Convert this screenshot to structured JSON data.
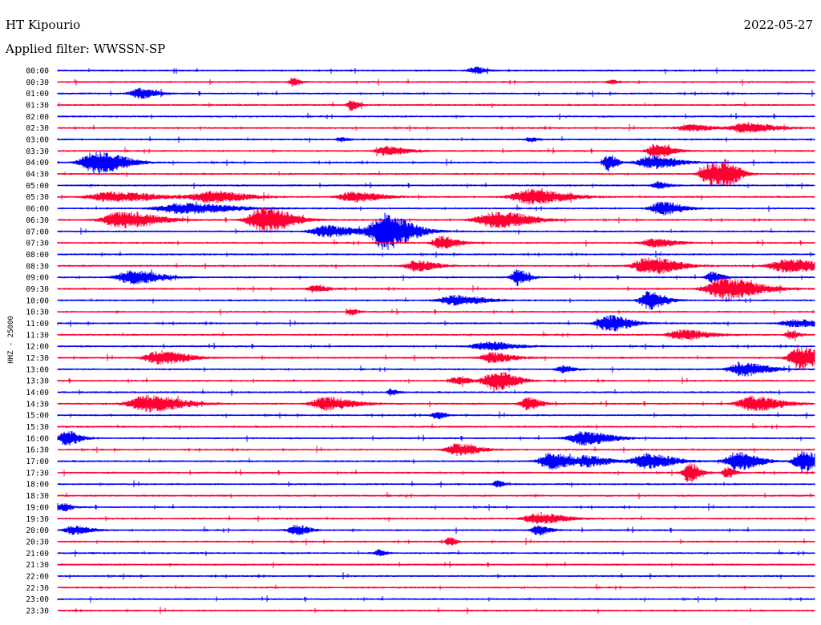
{
  "header": {
    "station": "HT Kipourio",
    "date": "2022-05-27",
    "filter": "Applied filter: WWSSN-SP"
  },
  "colors": {
    "trace_a": "#0000ff",
    "trace_b": "#ff0033",
    "background": "#ffffff"
  },
  "chart_data": {
    "type": "line",
    "title": "HT Kipourio",
    "subtitle": "Applied filter: WWSSN-SP",
    "ylabel": "HHZ - 25000",
    "xlabel": "",
    "legend": "none",
    "grid": false,
    "row_labels": [
      "00:00",
      "00:30",
      "01:00",
      "01:30",
      "02:00",
      "02:30",
      "03:00",
      "03:30",
      "04:00",
      "04:30",
      "05:00",
      "05:30",
      "06:00",
      "06:30",
      "07:00",
      "07:30",
      "08:00",
      "08:30",
      "09:00",
      "09:30",
      "10:00",
      "10:30",
      "11:00",
      "11:30",
      "12:00",
      "12:30",
      "13:00",
      "13:30",
      "14:00",
      "14:30",
      "15:00",
      "15:30",
      "16:00",
      "16:30",
      "17:00",
      "17:30",
      "18:00",
      "18:30",
      "19:00",
      "19:30",
      "20:00",
      "20:30",
      "21:00",
      "21:30",
      "22:00",
      "22:30",
      "23:00",
      "23:30"
    ],
    "row_colors": [
      "blue",
      "red"
    ],
    "minutes_per_row": 30,
    "events": [
      {
        "row": "00:00",
        "minute": 16.5,
        "amplitude": 4,
        "duration": 0.8
      },
      {
        "row": "00:30",
        "minute": 9.3,
        "amplitude": 5,
        "duration": 0.5
      },
      {
        "row": "00:30",
        "minute": 21.9,
        "amplitude": 3,
        "duration": 0.5
      },
      {
        "row": "01:00",
        "minute": 3.2,
        "amplitude": 6,
        "duration": 1.2
      },
      {
        "row": "01:30",
        "minute": 11.6,
        "amplitude": 7,
        "duration": 0.5
      },
      {
        "row": "02:30",
        "minute": 27.2,
        "amplitude": 6,
        "duration": 2.0
      },
      {
        "row": "02:30",
        "minute": 25.0,
        "amplitude": 4,
        "duration": 1.5
      },
      {
        "row": "03:00",
        "minute": 11.2,
        "amplitude": 3,
        "duration": 0.5
      },
      {
        "row": "03:00",
        "minute": 18.7,
        "amplitude": 3,
        "duration": 0.5
      },
      {
        "row": "03:30",
        "minute": 13.0,
        "amplitude": 5,
        "duration": 1.5
      },
      {
        "row": "03:30",
        "minute": 23.7,
        "amplitude": 8,
        "duration": 1.2
      },
      {
        "row": "04:00",
        "minute": 1.5,
        "amplitude": 14,
        "duration": 2.0
      },
      {
        "row": "04:00",
        "minute": 23.5,
        "amplitude": 8,
        "duration": 1.8
      },
      {
        "row": "04:00",
        "minute": 21.8,
        "amplitude": 10,
        "duration": 0.6
      },
      {
        "row": "04:30",
        "minute": 25.8,
        "amplitude": 13,
        "duration": 1.2
      },
      {
        "row": "04:30",
        "minute": 26.5,
        "amplitude": 12,
        "duration": 1.0
      },
      {
        "row": "05:00",
        "minute": 23.8,
        "amplitude": 4,
        "duration": 0.8
      },
      {
        "row": "05:30",
        "minute": 2.1,
        "amplitude": 6,
        "duration": 3.0
      },
      {
        "row": "05:30",
        "minute": 6.0,
        "amplitude": 7,
        "duration": 2.5
      },
      {
        "row": "05:30",
        "minute": 18.7,
        "amplitude": 9,
        "duration": 2.5
      },
      {
        "row": "05:30",
        "minute": 11.7,
        "amplitude": 6,
        "duration": 2.0
      },
      {
        "row": "06:00",
        "minute": 4.9,
        "amplitude": 6,
        "duration": 3.5
      },
      {
        "row": "06:00",
        "minute": 23.9,
        "amplitude": 8,
        "duration": 1.5
      },
      {
        "row": "06:30",
        "minute": 2.5,
        "amplitude": 10,
        "duration": 2.5
      },
      {
        "row": "06:30",
        "minute": 8.1,
        "amplitude": 16,
        "duration": 2.0
      },
      {
        "row": "06:30",
        "minute": 17.3,
        "amplitude": 10,
        "duration": 2.5
      },
      {
        "row": "07:00",
        "minute": 12.9,
        "amplitude": 22,
        "duration": 2.0
      },
      {
        "row": "07:00",
        "minute": 10.6,
        "amplitude": 7,
        "duration": 2.0
      },
      {
        "row": "07:30",
        "minute": 15.2,
        "amplitude": 8,
        "duration": 1.2
      },
      {
        "row": "07:30",
        "minute": 23.6,
        "amplitude": 5,
        "duration": 1.5
      },
      {
        "row": "08:30",
        "minute": 14.2,
        "amplitude": 6,
        "duration": 1.5
      },
      {
        "row": "08:30",
        "minute": 23.4,
        "amplitude": 11,
        "duration": 2.0
      },
      {
        "row": "08:30",
        "minute": 28.9,
        "amplitude": 8,
        "duration": 2.5
      },
      {
        "row": "09:00",
        "minute": 2.9,
        "amplitude": 8,
        "duration": 2.0
      },
      {
        "row": "09:00",
        "minute": 18.2,
        "amplitude": 10,
        "duration": 0.8
      },
      {
        "row": "09:00",
        "minute": 25.9,
        "amplitude": 6,
        "duration": 0.8
      },
      {
        "row": "09:30",
        "minute": 26.4,
        "amplitude": 13,
        "duration": 2.5
      },
      {
        "row": "09:30",
        "minute": 10.2,
        "amplitude": 4,
        "duration": 1.0
      },
      {
        "row": "10:00",
        "minute": 15.7,
        "amplitude": 6,
        "duration": 2.0
      },
      {
        "row": "10:00",
        "minute": 23.4,
        "amplitude": 11,
        "duration": 1.2
      },
      {
        "row": "10:30",
        "minute": 11.6,
        "amplitude": 4,
        "duration": 0.5
      },
      {
        "row": "11:00",
        "minute": 21.8,
        "amplitude": 10,
        "duration": 1.5
      },
      {
        "row": "11:00",
        "minute": 29.2,
        "amplitude": 4,
        "duration": 2.0
      },
      {
        "row": "11:30",
        "minute": 24.7,
        "amplitude": 6,
        "duration": 2.0
      },
      {
        "row": "11:30",
        "minute": 29.0,
        "amplitude": 5,
        "duration": 0.6
      },
      {
        "row": "12:00",
        "minute": 17.0,
        "amplitude": 5,
        "duration": 2.0
      },
      {
        "row": "12:30",
        "minute": 4.0,
        "amplitude": 8,
        "duration": 2.0
      },
      {
        "row": "12:30",
        "minute": 17.2,
        "amplitude": 6,
        "duration": 1.5
      },
      {
        "row": "12:30",
        "minute": 29.4,
        "amplitude": 14,
        "duration": 1.5
      },
      {
        "row": "13:00",
        "minute": 27.1,
        "amplitude": 8,
        "duration": 1.8
      },
      {
        "row": "13:00",
        "minute": 20.0,
        "amplitude": 4,
        "duration": 0.8
      },
      {
        "row": "13:30",
        "minute": 17.3,
        "amplitude": 12,
        "duration": 1.5
      },
      {
        "row": "13:30",
        "minute": 15.8,
        "amplitude": 4,
        "duration": 1.0
      },
      {
        "row": "14:00",
        "minute": 13.2,
        "amplitude": 4,
        "duration": 0.5
      },
      {
        "row": "14:30",
        "minute": 3.5,
        "amplitude": 10,
        "duration": 2.5
      },
      {
        "row": "14:30",
        "minute": 10.6,
        "amplitude": 8,
        "duration": 2.0
      },
      {
        "row": "14:30",
        "minute": 18.6,
        "amplitude": 7,
        "duration": 1.0
      },
      {
        "row": "14:30",
        "minute": 27.5,
        "amplitude": 9,
        "duration": 2.0
      },
      {
        "row": "15:00",
        "minute": 15.0,
        "amplitude": 5,
        "duration": 0.6
      },
      {
        "row": "16:00",
        "minute": 0.3,
        "amplitude": 9,
        "duration": 1.0
      },
      {
        "row": "16:00",
        "minute": 20.8,
        "amplitude": 8,
        "duration": 2.0
      },
      {
        "row": "16:30",
        "minute": 15.8,
        "amplitude": 7,
        "duration": 1.5
      },
      {
        "row": "17:00",
        "minute": 19.5,
        "amplitude": 10,
        "duration": 1.5
      },
      {
        "row": "17:00",
        "minute": 23.3,
        "amplitude": 9,
        "duration": 2.0
      },
      {
        "row": "17:00",
        "minute": 26.9,
        "amplitude": 12,
        "duration": 1.5
      },
      {
        "row": "17:00",
        "minute": 29.5,
        "amplitude": 13,
        "duration": 1.2
      },
      {
        "row": "17:00",
        "minute": 21.0,
        "amplitude": 6,
        "duration": 1.5
      },
      {
        "row": "17:30",
        "minute": 25.0,
        "amplitude": 12,
        "duration": 0.8
      },
      {
        "row": "17:30",
        "minute": 26.5,
        "amplitude": 6,
        "duration": 0.6
      },
      {
        "row": "18:00",
        "minute": 17.4,
        "amplitude": 4,
        "duration": 0.5
      },
      {
        "row": "19:00",
        "minute": 0.2,
        "amplitude": 5,
        "duration": 0.6
      },
      {
        "row": "19:30",
        "minute": 19.0,
        "amplitude": 6,
        "duration": 2.0
      },
      {
        "row": "20:00",
        "minute": 0.6,
        "amplitude": 5,
        "duration": 1.2
      },
      {
        "row": "20:00",
        "minute": 9.4,
        "amplitude": 6,
        "duration": 1.0
      },
      {
        "row": "20:00",
        "minute": 19.0,
        "amplitude": 6,
        "duration": 0.8
      },
      {
        "row": "20:30",
        "minute": 15.5,
        "amplitude": 5,
        "duration": 0.5
      },
      {
        "row": "21:00",
        "minute": 12.7,
        "amplitude": 4,
        "duration": 0.5
      }
    ]
  }
}
